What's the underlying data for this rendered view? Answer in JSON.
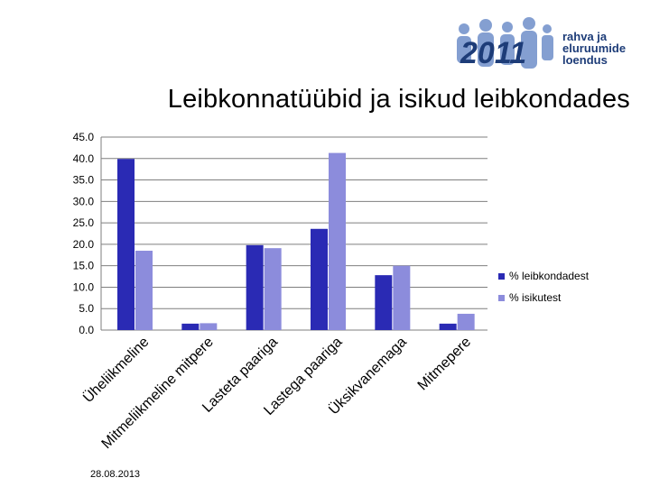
{
  "page": {
    "title": "Leibkonnatüübid ja isikud leibkondades",
    "date": "28.08.2013"
  },
  "logo": {
    "number": "2011",
    "lines": [
      "rahva ja",
      "eluruumide",
      "loendus"
    ]
  },
  "colors": {
    "series1": "#2a2ab4",
    "series2": "#8c8cdc",
    "grid": "#7f7f7f",
    "logo_text": "#1d3c78",
    "logo_figures": "#6f8fca"
  },
  "chart_data": {
    "type": "bar",
    "categories": [
      "Üheliikmeline",
      "Mitmeliikmeline mitpere",
      "Lasteta paariga",
      "Lastega paariga",
      "Üksikvanemaga",
      "Mitmepere"
    ],
    "series": [
      {
        "name": "% leibkondadest",
        "values": [
          39.9,
          1.5,
          19.8,
          23.6,
          12.8,
          1.5
        ]
      },
      {
        "name": "% isikutest",
        "values": [
          18.5,
          1.6,
          19.1,
          41.3,
          15.0,
          3.8
        ]
      }
    ],
    "yticks": [
      "0.0",
      "5.0",
      "10.0",
      "15.0",
      "20.0",
      "25.0",
      "30.0",
      "35.0",
      "40.0",
      "45.0"
    ],
    "ylim": [
      0,
      45
    ],
    "grid": true,
    "legend": "right"
  }
}
